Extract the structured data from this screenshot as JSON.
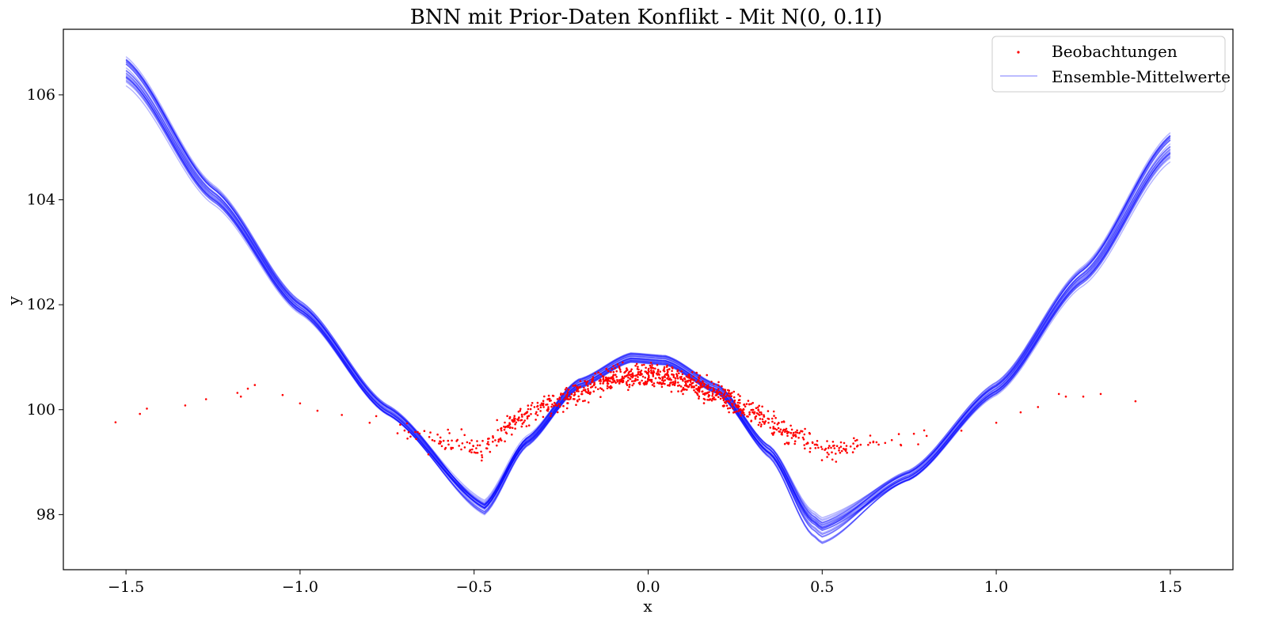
{
  "chart_data": {
    "type": "line",
    "title": "BNN mit Prior-Daten Konflikt - Mit N(0, 0.1I)",
    "xlabel": "x",
    "ylabel": "y",
    "xlim": [
      -1.68,
      1.68
    ],
    "ylim": [
      96.95,
      107.25
    ],
    "xticks": [
      -1.5,
      -1.0,
      -0.5,
      0.0,
      0.5,
      1.0,
      1.5
    ],
    "xtick_labels": [
      "−1.5",
      "−1.0",
      "−0.5",
      "0.0",
      "0.5",
      "1.0",
      "1.5"
    ],
    "yticks": [
      98,
      100,
      102,
      104,
      106
    ],
    "ytick_labels": [
      "98",
      "100",
      "102",
      "104",
      "106"
    ],
    "grid": false,
    "legend_position": "top-right",
    "legend": [
      {
        "label": "Beobachtungen",
        "kind": "scatter",
        "color": "#ff0000"
      },
      {
        "label": "Ensemble-Mittelwerte",
        "kind": "line",
        "color": "#0000ff"
      }
    ],
    "observations": {
      "name": "Beobachtungen",
      "color": "#ff0000",
      "count_approx": 1000,
      "points": [
        [
          -1.53,
          99.76
        ],
        [
          -1.46,
          99.92
        ],
        [
          -1.44,
          100.02
        ],
        [
          -1.33,
          100.08
        ],
        [
          -1.27,
          100.2
        ],
        [
          -1.18,
          100.32
        ],
        [
          -1.17,
          100.25
        ],
        [
          -1.15,
          100.4
        ],
        [
          -1.13,
          100.47
        ],
        [
          -1.05,
          100.28
        ],
        [
          -1.0,
          100.12
        ],
        [
          -0.95,
          99.98
        ],
        [
          -0.88,
          99.9
        ],
        [
          -0.8,
          99.75
        ],
        [
          -0.72,
          99.55
        ],
        [
          -0.62,
          99.42
        ],
        [
          -0.52,
          99.38
        ],
        [
          -0.48,
          99.2
        ],
        [
          -0.4,
          99.7
        ],
        [
          -0.3,
          100.05
        ],
        [
          -0.2,
          100.35
        ],
        [
          -0.1,
          100.6
        ],
        [
          0.0,
          100.68
        ],
        [
          0.1,
          100.55
        ],
        [
          0.2,
          100.3
        ],
        [
          0.3,
          99.95
        ],
        [
          0.4,
          99.55
        ],
        [
          0.5,
          99.25
        ],
        [
          0.6,
          99.3
        ],
        [
          0.7,
          99.42
        ],
        [
          0.8,
          99.5
        ],
        [
          0.9,
          99.6
        ],
        [
          1.0,
          99.75
        ],
        [
          1.07,
          99.95
        ],
        [
          1.12,
          100.05
        ],
        [
          1.18,
          100.3
        ],
        [
          1.2,
          100.25
        ],
        [
          1.25,
          100.25
        ],
        [
          1.3,
          100.3
        ],
        [
          1.4,
          100.16
        ]
      ]
    },
    "series": [
      {
        "name": "Ensemble-Mittelwerte",
        "color": "#0000ff",
        "members": 30,
        "x": [
          -1.5,
          -1.25,
          -1.0,
          -0.75,
          -0.47,
          -0.35,
          -0.2,
          -0.05,
          0.05,
          0.2,
          0.35,
          0.47,
          0.5,
          0.75,
          1.0,
          1.25,
          1.5
        ],
        "values": [
          106.45,
          104.1,
          101.95,
          100.0,
          98.15,
          99.4,
          100.5,
          101.0,
          100.95,
          100.4,
          99.2,
          97.85,
          97.7,
          98.75,
          100.4,
          102.55,
          105.0
        ]
      }
    ]
  }
}
